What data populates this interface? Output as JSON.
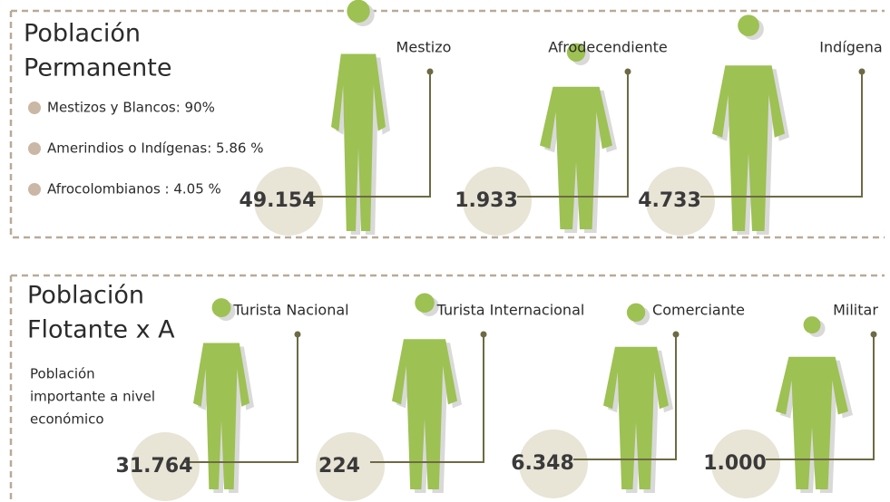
{
  "permanent": {
    "title_lines": [
      "Población",
      "Permanente"
    ],
    "legend": [
      "Mestizos y Blancos: 90%",
      "Amerindios o Indígenas: 5.86 %",
      "Afrocolombianos : 4.05 %"
    ],
    "groups": [
      {
        "label": "Mestizo",
        "count": "49.154"
      },
      {
        "label": "Afrodecendiente",
        "count": "1.933"
      },
      {
        "label": "Indígena",
        "count": "4.733"
      }
    ]
  },
  "floating": {
    "title_lines": [
      "Población",
      "Flotante x A"
    ],
    "note_lines": [
      "Población",
      "importante a nivel",
      "económico"
    ],
    "groups": [
      {
        "label": "Turista Nacional",
        "count": "31.764"
      },
      {
        "label": "Turista Internacional",
        "count": "224"
      },
      {
        "label": "Comerciante",
        "count": "6.348"
      },
      {
        "label": "Militar",
        "count": "1.000"
      }
    ]
  }
}
